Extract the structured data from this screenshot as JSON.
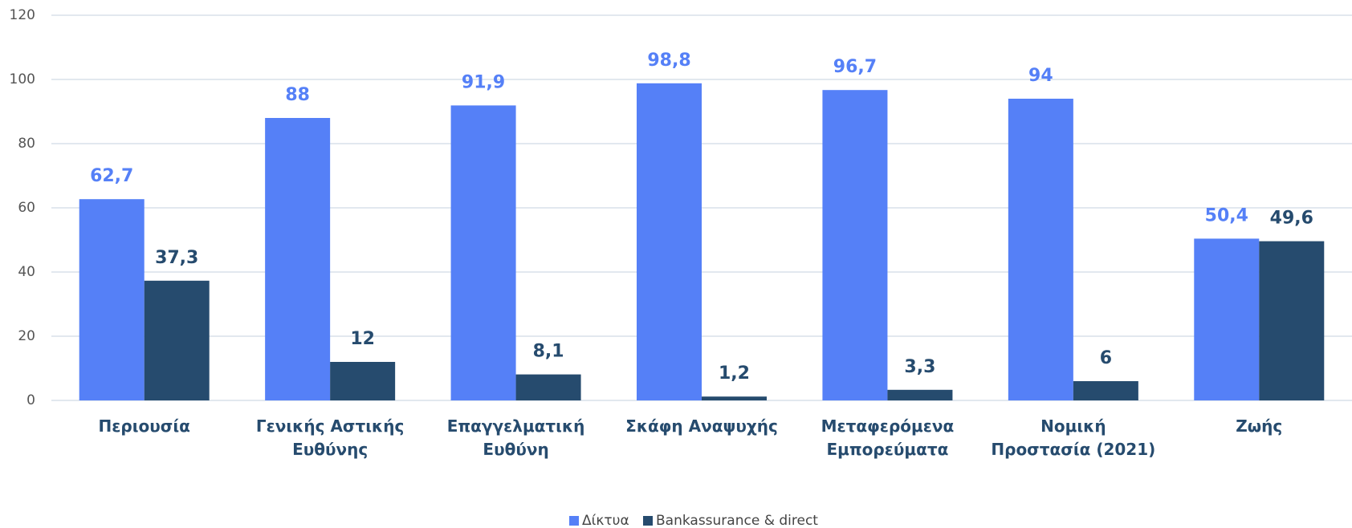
{
  "chart_data": {
    "type": "bar",
    "categories": [
      "Περιουσία",
      "Γενικής Αστικής Ευθύνης",
      "Επαγγελματική Ευθύνη",
      "Σκάφη Αναψυχής",
      "Μεταφερόμενα Εμπορεύματα",
      "Νομική Προστασία (2021)",
      "Ζωής"
    ],
    "series": [
      {
        "name": "Δίκτυα",
        "color": "#5580f7",
        "values": [
          62.7,
          88,
          91.9,
          98.8,
          96.7,
          94,
          50.4
        ],
        "value_labels": [
          "62,7",
          "88",
          "91,9",
          "98,8",
          "96,7",
          "94",
          "50,4"
        ]
      },
      {
        "name": "Bankassurance & direct",
        "color": "#264b6e",
        "values": [
          37.3,
          12,
          8.1,
          1.2,
          3.3,
          6,
          49.6
        ],
        "value_labels": [
          "37,3",
          "12",
          "8,1",
          "1,2",
          "3,3",
          "6",
          "49,6"
        ]
      }
    ],
    "ylim": [
      0,
      120
    ],
    "yticks": [
      0,
      20,
      40,
      60,
      80,
      100,
      120
    ],
    "grid": true,
    "legend": "bottom"
  }
}
